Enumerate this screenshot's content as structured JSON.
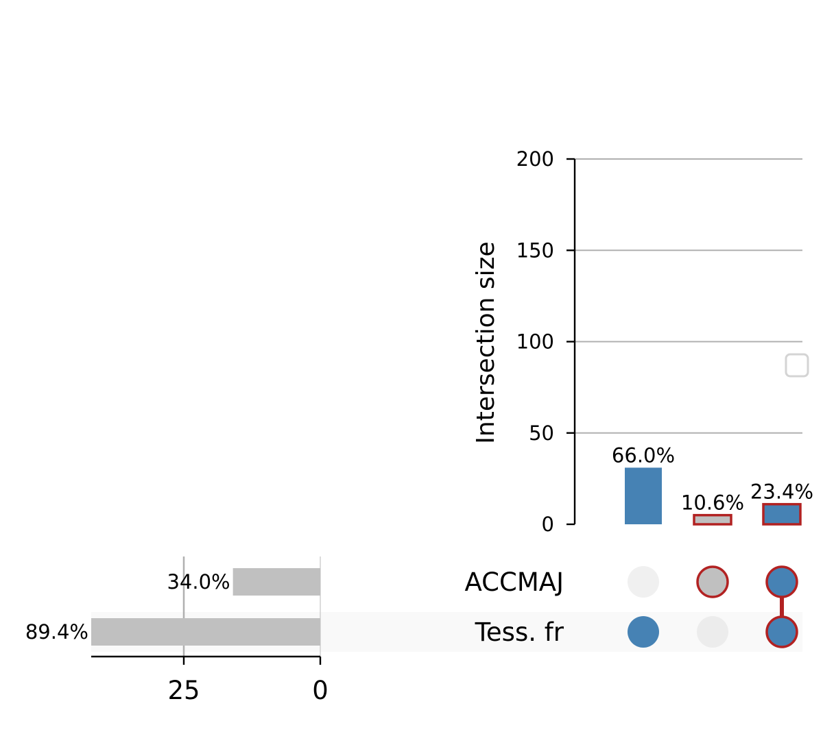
{
  "chart_data": {
    "type": "upset",
    "intersections": {
      "ylabel": "Intersection size",
      "ylim": [
        0,
        200
      ],
      "yticks": [
        "0",
        "50",
        "100",
        "150",
        "200"
      ],
      "grid": true,
      "bars": [
        {
          "sets": [
            "Tess. fr"
          ],
          "value": 31,
          "label": "66.0%",
          "highlighted": false
        },
        {
          "sets": [
            "ACCMAJ"
          ],
          "value": 5,
          "label": "10.6%",
          "highlighted": true
        },
        {
          "sets": [
            "ACCMAJ",
            "Tess. fr"
          ],
          "value": 11,
          "label": "23.4%",
          "highlighted": true
        }
      ]
    },
    "sets": [
      {
        "name": "ACCMAJ",
        "size": 16,
        "label": "34.0%"
      },
      {
        "name": "Tess. fr",
        "size": 42,
        "label": "89.4%"
      }
    ],
    "set_size_axis": {
      "ticks": [
        "25",
        "0"
      ],
      "tick_values": [
        25,
        0
      ],
      "direction": "reversed"
    },
    "legend": {
      "placement": "right",
      "entries": []
    },
    "colors": {
      "bar": "#4682b4",
      "highlight_fill": "#c0c0c0",
      "highlight_edge": "#b22222",
      "set_bar": "#c0c0c0",
      "inactive_dot": "#f0f0f0",
      "grid": "#b0b0b0"
    }
  }
}
